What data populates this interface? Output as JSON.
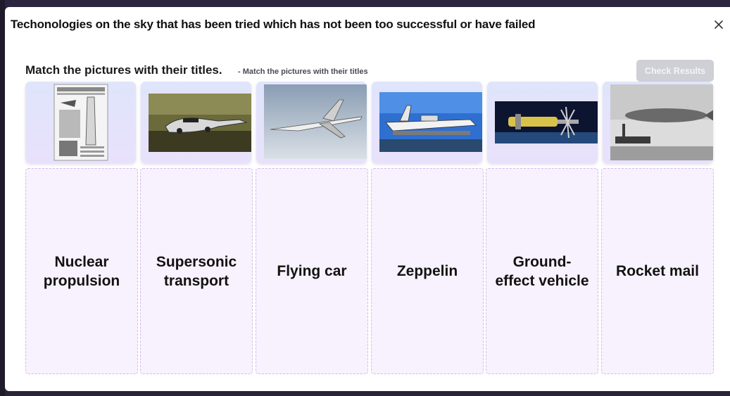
{
  "modal": {
    "title": "Techonologies on the sky that has been tried which has not been too successful or have failed",
    "close_icon": "close-icon"
  },
  "activity": {
    "instruction": "Match the pictures with their titles.",
    "sub_instruction": "- Match the pictures with their titles",
    "check_label": "Check Results"
  },
  "pictures": [
    {
      "icon": "rocket-mail-newspaper-image"
    },
    {
      "icon": "flying-car-image"
    },
    {
      "icon": "supersonic-jet-image"
    },
    {
      "icon": "ground-effect-vehicle-image"
    },
    {
      "icon": "nuclear-spacecraft-image"
    },
    {
      "icon": "zeppelin-image"
    }
  ],
  "titles": [
    {
      "label": "Nuclear propulsion"
    },
    {
      "label": "Supersonic transport"
    },
    {
      "label": "Flying car"
    },
    {
      "label": "Zeppelin"
    },
    {
      "label": "Ground-effect vehicle"
    },
    {
      "label": "Rocket mail"
    }
  ],
  "colors": {
    "card_gradient_top": "#dfe5fb",
    "drop_background": "#f7f2fd",
    "drop_border": "#d9b8ec",
    "check_button": "#cfd0d6"
  }
}
